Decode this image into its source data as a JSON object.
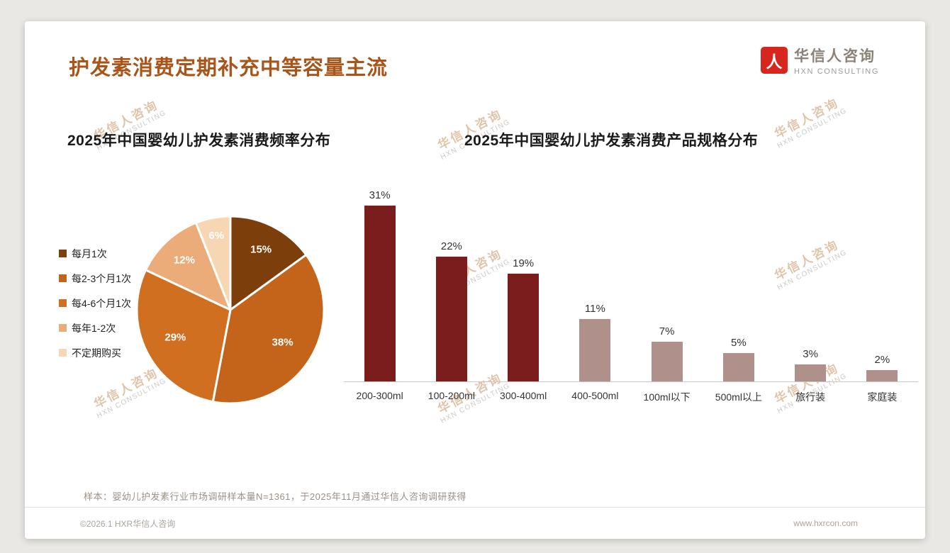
{
  "page": {
    "title": "护发素消费定期补充中等容量主流",
    "sample_note": "样本：婴幼儿护发素行业市场调研样本量N=1361，于2025年11月通过华信人咨询调研获得",
    "footer_left": "©2026.1 HXR华信人咨询",
    "footer_right": "www.hxrcon.com",
    "accent_color": "#A9551A"
  },
  "logo": {
    "name": "华信人咨询",
    "subtitle": "HXN CONSULTING",
    "icon": "hxn-red-mark-icon",
    "icon_glyph": "人",
    "icon_color": "#D7261E"
  },
  "watermark": {
    "line1": "华信人咨询",
    "line2": "HXN CONSULTING"
  },
  "chart_data": [
    {
      "type": "pie",
      "title": "2025年中国婴幼儿护发素消费频率分布",
      "labels": [
        "每月1次",
        "每2-3个月1次",
        "每4-6个月1次",
        "每年1-2次",
        "不定期购买"
      ],
      "values": [
        15,
        38,
        29,
        12,
        6
      ],
      "unit": "%",
      "data_labels": [
        "15%",
        "38%",
        "29%",
        "12%",
        "6%"
      ],
      "colors": [
        "#7C3E0A",
        "#C4641A",
        "#D06F20",
        "#ECAC79",
        "#F7D6B4"
      ],
      "legend_position": "left",
      "label_color": "#ffffff"
    },
    {
      "type": "bar",
      "title": "2025年中国婴幼儿护发素消费产品规格分布",
      "categories": [
        "200-300ml",
        "100-200ml",
        "300-400ml",
        "400-500ml",
        "100ml以下",
        "500ml以上",
        "旅行装",
        "家庭装"
      ],
      "values": [
        31,
        22,
        19,
        11,
        7,
        5,
        3,
        2
      ],
      "unit": "%",
      "value_labels": [
        "31%",
        "22%",
        "19%",
        "11%",
        "7%",
        "5%",
        "3%",
        "2%"
      ],
      "bar_colors": [
        "#7B1D1D",
        "#7B1D1D",
        "#7B1D1D",
        "#B0908A",
        "#B0908A",
        "#B0908A",
        "#B0908A",
        "#B0908A"
      ],
      "ylim": [
        0,
        35
      ],
      "grid": false,
      "value_label_position": "above",
      "axis_line_color": "#c9c9c9"
    }
  ]
}
